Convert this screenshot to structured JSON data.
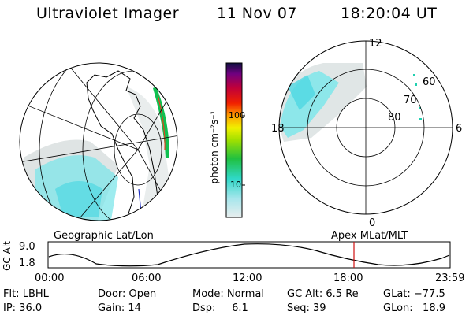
{
  "header": {
    "instrument": "Ultraviolet Imager",
    "date": "11 Nov 07",
    "time": "18:20:04 UT"
  },
  "colorbar": {
    "label": "photon cm⁻²s⁻¹",
    "ticks": [
      "100",
      "10"
    ]
  },
  "polar_plot": {
    "title": "Apex MLat/MLT",
    "mlt_labels": {
      "top": "12",
      "left": "18",
      "right": "6",
      "bottom": "0"
    },
    "lat_labels": [
      "60",
      "70",
      "80"
    ]
  },
  "geo_plot": {
    "title": "Geographic Lat/Lon"
  },
  "altitude_plot": {
    "ylabel": "GC Alt",
    "yticks": [
      "9.0",
      "1.8"
    ],
    "xticks": [
      "00:00",
      "06:00",
      "12:00",
      "18:00",
      "23:59"
    ],
    "marker_time": "18:20"
  },
  "info": {
    "filter": "Flt: LBHL",
    "door": "Door: Open",
    "mode": "Mode: Normal",
    "gc_alt": "GC Alt: 6.5 Re",
    "glat": "GLat: −77.5",
    "ip": "IP: 36.0",
    "gain": "Gain: 14",
    "dsp": "Dsp:     6.1",
    "seq": "Seq: 39",
    "glon": "GLon:   18.9"
  },
  "colors": {
    "marker": "#d01010",
    "aurora_cyan": "#55e0e8",
    "aurora_gray": "#d6dcdc",
    "aurora_green": "#10c050"
  }
}
